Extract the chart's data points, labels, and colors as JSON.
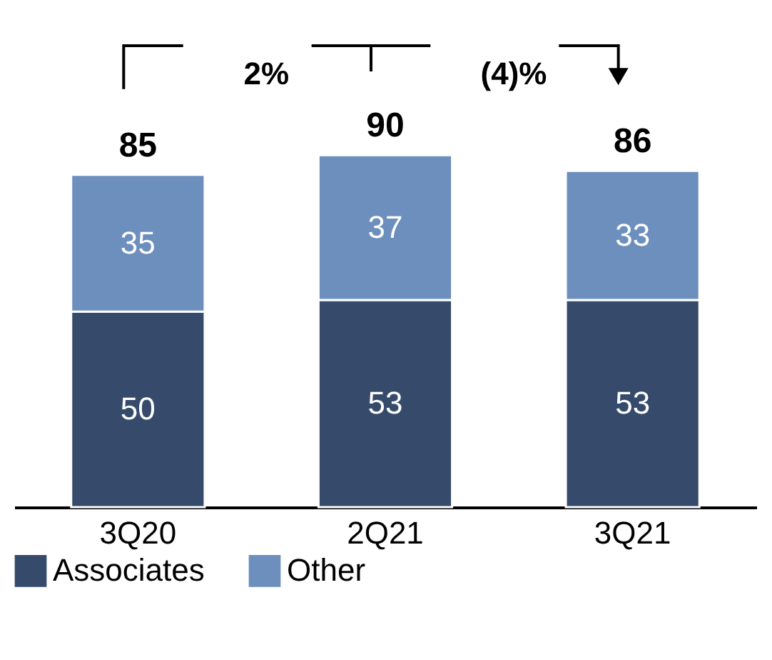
{
  "chart_data": {
    "type": "bar",
    "stacked": true,
    "categories": [
      "3Q20",
      "2Q21",
      "3Q21"
    ],
    "series": [
      {
        "name": "Associates",
        "color": "#364b6b",
        "values": [
          50,
          53,
          53
        ]
      },
      {
        "name": "Other",
        "color": "#6d8fbd",
        "values": [
          35,
          37,
          33
        ]
      }
    ],
    "data_labels": true,
    "totals": [
      "85",
      "90",
      "86"
    ],
    "annotations": [
      "2%",
      "(4)%"
    ],
    "legend": "bottom"
  }
}
